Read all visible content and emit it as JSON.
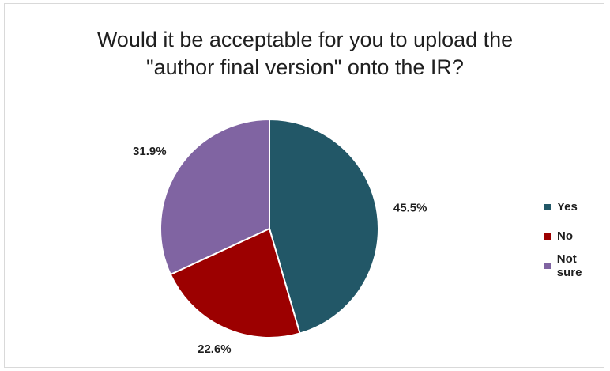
{
  "chart_data": {
    "type": "pie",
    "title": {
      "line1": "Would it be acceptable for you to upload the",
      "line2": "\"author final version\" onto the IR?"
    },
    "categories": [
      "Yes",
      "No",
      "Not sure"
    ],
    "values": [
      45.5,
      22.6,
      31.9
    ],
    "labels": [
      "45.5%",
      "22.6%",
      "31.9%"
    ],
    "colors": [
      "#225767",
      "#9c0000",
      "#8064a2"
    ],
    "legend_position": "right"
  }
}
